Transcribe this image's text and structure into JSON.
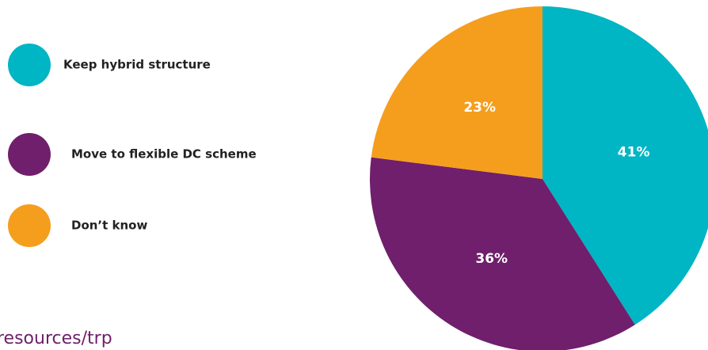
{
  "chart_data": {
    "type": "pie",
    "categories": [
      "Keep hybrid structure",
      "Move to flexible DC scheme",
      "Don’t know"
    ],
    "values": [
      41,
      36,
      23
    ],
    "value_labels": [
      "41%",
      "36%",
      "23%"
    ],
    "colors": [
      "#00b5c4",
      "#6f1f6b",
      "#f59e1e"
    ],
    "annotation": "resources/trp"
  }
}
